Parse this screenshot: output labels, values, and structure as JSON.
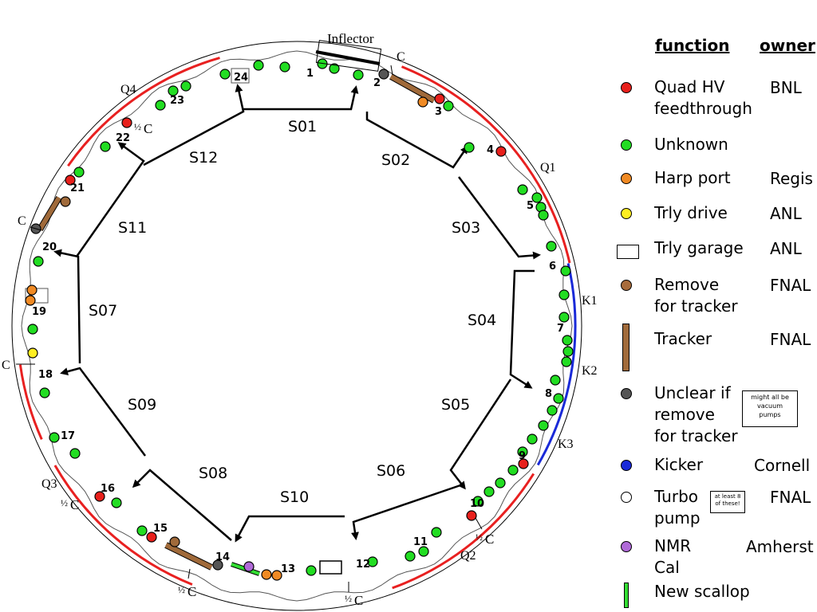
{
  "header": {
    "function_label": "function",
    "owner_label": "owner"
  },
  "inflector_label": "Inflector",
  "legend": [
    {
      "symbol": "dot",
      "color": "#e8201c",
      "function": "Quad HV\nfeedthrough",
      "owner": "BNL"
    },
    {
      "symbol": "dot",
      "color": "#22dd22",
      "function": "Unknown",
      "owner": ""
    },
    {
      "symbol": "dot",
      "color": "#f08a24",
      "function": "Harp port",
      "owner": "Regis"
    },
    {
      "symbol": "dot",
      "color": "#ffee22",
      "function": "Trly drive",
      "owner": "ANL"
    },
    {
      "symbol": "rect",
      "color": "#ffffff",
      "function": "Trly garage",
      "owner": "ANL"
    },
    {
      "symbol": "dot",
      "color": "#a86c3c",
      "function": "Remove\nfor tracker",
      "owner": "FNAL"
    },
    {
      "symbol": "bar",
      "color": "#a06a3a",
      "function": "Tracker",
      "owner": "FNAL"
    },
    {
      "symbol": "dot",
      "color": "#555555",
      "function": "Unclear if\nremove\nfor tracker",
      "owner": "",
      "note": "might all be\nvacuum\npumps"
    },
    {
      "symbol": "dot",
      "color": "#1a2ad8",
      "function": "Kicker",
      "owner": "Cornell"
    },
    {
      "symbol": "dot",
      "color": "#ffffff",
      "function": "Turbo\npump",
      "owner": "FNAL",
      "note": "at least 8\nof these!"
    },
    {
      "symbol": "dot",
      "color": "#b06ad8",
      "function": "NMR\nCal",
      "owner": "Amherst"
    },
    {
      "symbol": "scallop",
      "color": "#33dd33",
      "function": "New scallop",
      "owner": ""
    }
  ],
  "stations": [
    "1",
    "2",
    "3",
    "4",
    "5",
    "6",
    "7",
    "8",
    "9",
    "10",
    "11",
    "12",
    "13",
    "14",
    "15",
    "16",
    "17",
    "18",
    "19",
    "20",
    "21",
    "22",
    "23",
    "24"
  ],
  "sections": [
    "S01",
    "S02",
    "S03",
    "S04",
    "S05",
    "S06",
    "S10",
    "S08",
    "S09",
    "S07",
    "S11",
    "S12"
  ],
  "magnet_labels": {
    "q1": "Q1",
    "q2": "Q2",
    "q3": "Q3",
    "q4": "Q4",
    "k1": "K1",
    "k2": "K2",
    "k3": "K3",
    "c": "C",
    "half": "½",
    "half_c": "C"
  },
  "colors": {
    "quad": "#e8201c",
    "unknown": "#22dd22",
    "harp": "#f08a24",
    "trly": "#ffee22",
    "tracker": "#a06a3a",
    "unclear": "#555555",
    "kicker": "#1a2ad8",
    "nmr": "#b06ad8",
    "scallop": "#33dd33",
    "quad_arc": "#e82020",
    "kicker_arc": "#1a2ad8"
  }
}
